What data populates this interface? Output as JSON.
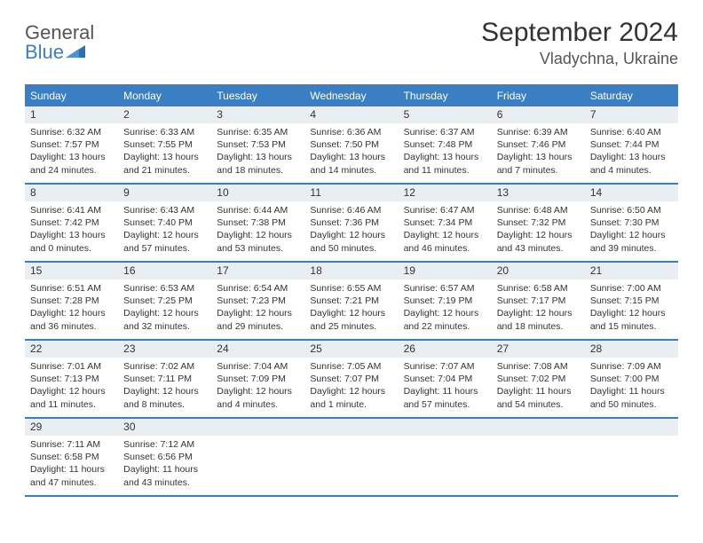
{
  "logo": {
    "word1": "General",
    "word2": "Blue"
  },
  "title": "September 2024",
  "location": "Vladychna, Ukraine",
  "colors": {
    "header_bg": "#3a7fc4",
    "daynum_bg": "#e9eef3",
    "text": "#333333",
    "logo_blue": "#3a7fc4"
  },
  "dayNames": [
    "Sunday",
    "Monday",
    "Tuesday",
    "Wednesday",
    "Thursday",
    "Friday",
    "Saturday"
  ],
  "weeks": [
    [
      {
        "n": "1",
        "sunrise": "6:32 AM",
        "sunset": "7:57 PM",
        "dh": "13",
        "dm": "24"
      },
      {
        "n": "2",
        "sunrise": "6:33 AM",
        "sunset": "7:55 PM",
        "dh": "13",
        "dm": "21"
      },
      {
        "n": "3",
        "sunrise": "6:35 AM",
        "sunset": "7:53 PM",
        "dh": "13",
        "dm": "18"
      },
      {
        "n": "4",
        "sunrise": "6:36 AM",
        "sunset": "7:50 PM",
        "dh": "13",
        "dm": "14"
      },
      {
        "n": "5",
        "sunrise": "6:37 AM",
        "sunset": "7:48 PM",
        "dh": "13",
        "dm": "11"
      },
      {
        "n": "6",
        "sunrise": "6:39 AM",
        "sunset": "7:46 PM",
        "dh": "13",
        "dm": "7"
      },
      {
        "n": "7",
        "sunrise": "6:40 AM",
        "sunset": "7:44 PM",
        "dh": "13",
        "dm": "4"
      }
    ],
    [
      {
        "n": "8",
        "sunrise": "6:41 AM",
        "sunset": "7:42 PM",
        "dh": "13",
        "dm": "0"
      },
      {
        "n": "9",
        "sunrise": "6:43 AM",
        "sunset": "7:40 PM",
        "dh": "12",
        "dm": "57"
      },
      {
        "n": "10",
        "sunrise": "6:44 AM",
        "sunset": "7:38 PM",
        "dh": "12",
        "dm": "53"
      },
      {
        "n": "11",
        "sunrise": "6:46 AM",
        "sunset": "7:36 PM",
        "dh": "12",
        "dm": "50"
      },
      {
        "n": "12",
        "sunrise": "6:47 AM",
        "sunset": "7:34 PM",
        "dh": "12",
        "dm": "46"
      },
      {
        "n": "13",
        "sunrise": "6:48 AM",
        "sunset": "7:32 PM",
        "dh": "12",
        "dm": "43"
      },
      {
        "n": "14",
        "sunrise": "6:50 AM",
        "sunset": "7:30 PM",
        "dh": "12",
        "dm": "39"
      }
    ],
    [
      {
        "n": "15",
        "sunrise": "6:51 AM",
        "sunset": "7:28 PM",
        "dh": "12",
        "dm": "36"
      },
      {
        "n": "16",
        "sunrise": "6:53 AM",
        "sunset": "7:25 PM",
        "dh": "12",
        "dm": "32"
      },
      {
        "n": "17",
        "sunrise": "6:54 AM",
        "sunset": "7:23 PM",
        "dh": "12",
        "dm": "29"
      },
      {
        "n": "18",
        "sunrise": "6:55 AM",
        "sunset": "7:21 PM",
        "dh": "12",
        "dm": "25"
      },
      {
        "n": "19",
        "sunrise": "6:57 AM",
        "sunset": "7:19 PM",
        "dh": "12",
        "dm": "22"
      },
      {
        "n": "20",
        "sunrise": "6:58 AM",
        "sunset": "7:17 PM",
        "dh": "12",
        "dm": "18"
      },
      {
        "n": "21",
        "sunrise": "7:00 AM",
        "sunset": "7:15 PM",
        "dh": "12",
        "dm": "15"
      }
    ],
    [
      {
        "n": "22",
        "sunrise": "7:01 AM",
        "sunset": "7:13 PM",
        "dh": "12",
        "dm": "11"
      },
      {
        "n": "23",
        "sunrise": "7:02 AM",
        "sunset": "7:11 PM",
        "dh": "12",
        "dm": "8"
      },
      {
        "n": "24",
        "sunrise": "7:04 AM",
        "sunset": "7:09 PM",
        "dh": "12",
        "dm": "4"
      },
      {
        "n": "25",
        "sunrise": "7:05 AM",
        "sunset": "7:07 PM",
        "dh": "12",
        "dm": "1"
      },
      {
        "n": "26",
        "sunrise": "7:07 AM",
        "sunset": "7:04 PM",
        "dh": "11",
        "dm": "57"
      },
      {
        "n": "27",
        "sunrise": "7:08 AM",
        "sunset": "7:02 PM",
        "dh": "11",
        "dm": "54"
      },
      {
        "n": "28",
        "sunrise": "7:09 AM",
        "sunset": "7:00 PM",
        "dh": "11",
        "dm": "50"
      }
    ],
    [
      {
        "n": "29",
        "sunrise": "7:11 AM",
        "sunset": "6:58 PM",
        "dh": "11",
        "dm": "47"
      },
      {
        "n": "30",
        "sunrise": "7:12 AM",
        "sunset": "6:56 PM",
        "dh": "11",
        "dm": "43"
      },
      null,
      null,
      null,
      null,
      null
    ]
  ],
  "labels": {
    "sunrise": "Sunrise: ",
    "sunset": "Sunset: ",
    "daylight1": "Daylight: ",
    "hoursAnd": " hours and ",
    "minutes": " minutes.",
    "minute": " minute."
  }
}
